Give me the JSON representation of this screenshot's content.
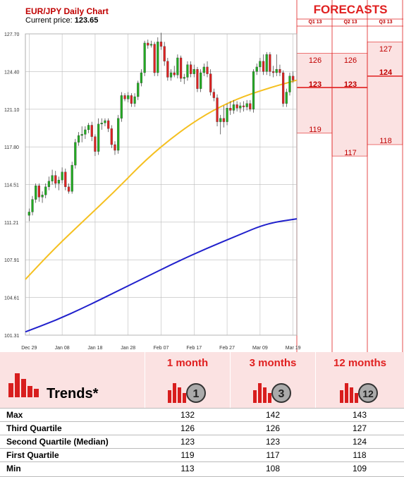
{
  "header": {
    "title": "EUR/JPY Daily Chart",
    "price_label": "Current price:",
    "price_value": "123.65"
  },
  "chart_data": {
    "type": "candlestick",
    "title": "EUR/JPY Daily Chart",
    "ylim": [
      101.31,
      127.7
    ],
    "y_ticks": [
      "127.70",
      "124.40",
      "121.10",
      "117.80",
      "114.51",
      "111.21",
      "107.91",
      "104.61",
      "101.31"
    ],
    "x_ticks": [
      "Dec 29",
      "Jan 08",
      "Jan 18",
      "Jan 28",
      "Feb 07",
      "Feb 17",
      "Feb 27",
      "Mar 09",
      "Mar 19"
    ],
    "grid": true,
    "candles": [
      {
        "d": "Dec 29",
        "o": 111.8,
        "h": 112.4,
        "l": 111.3,
        "c": 112.1
      },
      {
        "d": "Dec 30",
        "o": 112.1,
        "h": 113.5,
        "l": 111.8,
        "c": 113.2
      },
      {
        "d": "Dec 31",
        "o": 113.2,
        "h": 114.6,
        "l": 112.9,
        "c": 114.4
      },
      {
        "d": "Jan 01",
        "o": 114.4,
        "h": 114.6,
        "l": 113.0,
        "c": 113.4
      },
      {
        "d": "Jan 02",
        "o": 113.4,
        "h": 113.9,
        "l": 112.9,
        "c": 113.6
      },
      {
        "d": "Jan 03",
        "o": 113.6,
        "h": 114.6,
        "l": 113.3,
        "c": 114.3
      },
      {
        "d": "Jan 04",
        "o": 114.3,
        "h": 115.2,
        "l": 114.0,
        "c": 114.8
      },
      {
        "d": "Jan 05",
        "o": 114.8,
        "h": 115.8,
        "l": 114.5,
        "c": 115.3
      },
      {
        "d": "Jan 06",
        "o": 115.3,
        "h": 115.7,
        "l": 114.2,
        "c": 114.6
      },
      {
        "d": "Jan 07",
        "o": 114.6,
        "h": 115.2,
        "l": 114.0,
        "c": 114.9
      },
      {
        "d": "Jan 08",
        "o": 114.9,
        "h": 116.0,
        "l": 114.6,
        "c": 115.6
      },
      {
        "d": "Jan 09",
        "o": 115.6,
        "h": 115.9,
        "l": 114.0,
        "c": 114.3
      },
      {
        "d": "Jan 10",
        "o": 114.3,
        "h": 114.6,
        "l": 113.7,
        "c": 113.9
      },
      {
        "d": "Jan 11",
        "o": 113.9,
        "h": 116.5,
        "l": 113.7,
        "c": 116.2
      },
      {
        "d": "Jan 12",
        "o": 116.2,
        "h": 118.5,
        "l": 115.9,
        "c": 118.2
      },
      {
        "d": "Jan 13",
        "o": 118.2,
        "h": 119.1,
        "l": 117.9,
        "c": 118.8
      },
      {
        "d": "Jan 14",
        "o": 118.8,
        "h": 119.6,
        "l": 118.2,
        "c": 118.9
      },
      {
        "d": "Jan 15",
        "o": 118.9,
        "h": 119.6,
        "l": 118.5,
        "c": 119.3
      },
      {
        "d": "Jan 16",
        "o": 119.3,
        "h": 119.9,
        "l": 119.0,
        "c": 119.7
      },
      {
        "d": "Jan 17",
        "o": 119.7,
        "h": 120.0,
        "l": 118.3,
        "c": 118.7
      },
      {
        "d": "Jan 18",
        "o": 118.7,
        "h": 118.9,
        "l": 117.0,
        "c": 117.4
      },
      {
        "d": "Jan 19",
        "o": 117.4,
        "h": 120.3,
        "l": 117.1,
        "c": 119.8
      },
      {
        "d": "Jan 20",
        "o": 119.8,
        "h": 120.3,
        "l": 119.3,
        "c": 119.9
      },
      {
        "d": "Jan 21",
        "o": 119.9,
        "h": 120.3,
        "l": 119.6,
        "c": 120.1
      },
      {
        "d": "Jan 22",
        "o": 120.1,
        "h": 120.3,
        "l": 119.1,
        "c": 119.4
      },
      {
        "d": "Jan 23",
        "o": 119.4,
        "h": 119.7,
        "l": 117.7,
        "c": 118.0
      },
      {
        "d": "Jan 24",
        "o": 118.0,
        "h": 118.3,
        "l": 117.1,
        "c": 117.5
      },
      {
        "d": "Jan 25",
        "o": 117.5,
        "h": 120.6,
        "l": 117.2,
        "c": 120.3
      },
      {
        "d": "Jan 26",
        "o": 120.3,
        "h": 122.6,
        "l": 120.0,
        "c": 122.3
      },
      {
        "d": "Jan 27",
        "o": 122.3,
        "h": 122.5,
        "l": 121.8,
        "c": 122.0
      },
      {
        "d": "Jan 28",
        "o": 122.0,
        "h": 122.6,
        "l": 121.7,
        "c": 122.3
      },
      {
        "d": "Jan 29",
        "o": 122.3,
        "h": 122.5,
        "l": 121.3,
        "c": 121.6
      },
      {
        "d": "Jan 30",
        "o": 121.6,
        "h": 122.5,
        "l": 121.3,
        "c": 122.2
      },
      {
        "d": "Jan 31",
        "o": 122.2,
        "h": 123.6,
        "l": 121.9,
        "c": 123.4
      },
      {
        "d": "Feb 01",
        "o": 123.4,
        "h": 124.6,
        "l": 123.1,
        "c": 124.3
      },
      {
        "d": "Feb 02",
        "o": 124.3,
        "h": 127.1,
        "l": 124.0,
        "c": 126.9
      },
      {
        "d": "Feb 03",
        "o": 126.9,
        "h": 127.2,
        "l": 126.4,
        "c": 126.7
      },
      {
        "d": "Feb 04",
        "o": 126.7,
        "h": 127.1,
        "l": 126.5,
        "c": 126.8
      },
      {
        "d": "Feb 05",
        "o": 126.8,
        "h": 127.0,
        "l": 124.0,
        "c": 124.3
      },
      {
        "d": "Feb 06",
        "o": 124.3,
        "h": 127.4,
        "l": 124.0,
        "c": 127.0
      },
      {
        "d": "Feb 07",
        "o": 127.0,
        "h": 127.8,
        "l": 126.3,
        "c": 126.6
      },
      {
        "d": "Feb 08",
        "o": 126.6,
        "h": 127.0,
        "l": 124.9,
        "c": 125.3
      },
      {
        "d": "Feb 09",
        "o": 125.3,
        "h": 125.6,
        "l": 123.6,
        "c": 123.9
      },
      {
        "d": "Feb 10",
        "o": 123.9,
        "h": 124.6,
        "l": 123.6,
        "c": 124.3
      },
      {
        "d": "Feb 11",
        "o": 124.3,
        "h": 124.9,
        "l": 123.9,
        "c": 124.1
      },
      {
        "d": "Feb 12",
        "o": 124.1,
        "h": 125.9,
        "l": 123.8,
        "c": 125.6
      },
      {
        "d": "Feb 13",
        "o": 125.6,
        "h": 125.8,
        "l": 123.5,
        "c": 123.8
      },
      {
        "d": "Feb 14",
        "o": 123.8,
        "h": 124.2,
        "l": 123.3,
        "c": 123.9
      },
      {
        "d": "Feb 15",
        "o": 123.9,
        "h": 125.3,
        "l": 123.6,
        "c": 125.0
      },
      {
        "d": "Feb 16",
        "o": 125.0,
        "h": 125.3,
        "l": 123.9,
        "c": 124.2
      },
      {
        "d": "Feb 17",
        "o": 124.2,
        "h": 125.0,
        "l": 123.9,
        "c": 124.6
      },
      {
        "d": "Feb 18",
        "o": 124.6,
        "h": 124.8,
        "l": 122.6,
        "c": 122.9
      },
      {
        "d": "Feb 19",
        "o": 122.9,
        "h": 124.6,
        "l": 122.6,
        "c": 124.3
      },
      {
        "d": "Feb 20",
        "o": 124.3,
        "h": 125.1,
        "l": 124.0,
        "c": 124.8
      },
      {
        "d": "Feb 21",
        "o": 124.8,
        "h": 125.3,
        "l": 123.9,
        "c": 124.2
      },
      {
        "d": "Feb 22",
        "o": 124.2,
        "h": 124.6,
        "l": 122.3,
        "c": 122.6
      },
      {
        "d": "Feb 23",
        "o": 122.6,
        "h": 122.9,
        "l": 121.8,
        "c": 122.1
      },
      {
        "d": "Feb 24",
        "o": 122.1,
        "h": 122.4,
        "l": 119.6,
        "c": 120.0
      },
      {
        "d": "Feb 25",
        "o": 120.0,
        "h": 120.6,
        "l": 118.9,
        "c": 120.3
      },
      {
        "d": "Feb 26",
        "o": 120.3,
        "h": 121.4,
        "l": 119.5,
        "c": 120.0
      },
      {
        "d": "Feb 27",
        "o": 120.0,
        "h": 121.6,
        "l": 119.7,
        "c": 121.2
      },
      {
        "d": "Feb 28",
        "o": 121.2,
        "h": 121.8,
        "l": 120.6,
        "c": 121.0
      },
      {
        "d": "Mar 01",
        "o": 121.0,
        "h": 121.9,
        "l": 120.7,
        "c": 121.5
      },
      {
        "d": "Mar 02",
        "o": 121.5,
        "h": 121.8,
        "l": 120.9,
        "c": 121.2
      },
      {
        "d": "Mar 03",
        "o": 121.2,
        "h": 121.7,
        "l": 120.8,
        "c": 121.4
      },
      {
        "d": "Mar 04",
        "o": 121.4,
        "h": 121.8,
        "l": 120.9,
        "c": 121.3
      },
      {
        "d": "Mar 05",
        "o": 121.3,
        "h": 121.9,
        "l": 121.0,
        "c": 121.6
      },
      {
        "d": "Mar 06",
        "o": 121.6,
        "h": 121.9,
        "l": 120.9,
        "c": 121.1
      },
      {
        "d": "Mar 07",
        "o": 121.1,
        "h": 124.6,
        "l": 120.8,
        "c": 124.4
      },
      {
        "d": "Mar 08",
        "o": 124.4,
        "h": 125.1,
        "l": 124.1,
        "c": 124.8
      },
      {
        "d": "Mar 09",
        "o": 124.8,
        "h": 125.6,
        "l": 124.4,
        "c": 125.3
      },
      {
        "d": "Mar 10",
        "o": 125.3,
        "h": 125.9,
        "l": 124.1,
        "c": 124.4
      },
      {
        "d": "Mar 11",
        "o": 124.4,
        "h": 126.1,
        "l": 124.1,
        "c": 125.9
      },
      {
        "d": "Mar 12",
        "o": 125.9,
        "h": 126.1,
        "l": 124.0,
        "c": 124.4
      },
      {
        "d": "Mar 13",
        "o": 124.4,
        "h": 124.9,
        "l": 123.9,
        "c": 124.3
      },
      {
        "d": "Mar 14",
        "o": 124.3,
        "h": 125.9,
        "l": 124.0,
        "c": 124.6
      },
      {
        "d": "Mar 15",
        "o": 124.6,
        "h": 125.0,
        "l": 124.0,
        "c": 124.3
      },
      {
        "d": "Mar 16",
        "o": 124.3,
        "h": 124.5,
        "l": 121.3,
        "c": 121.6
      },
      {
        "d": "Mar 17",
        "o": 121.6,
        "h": 122.9,
        "l": 121.3,
        "c": 122.6
      },
      {
        "d": "Mar 18",
        "o": 122.6,
        "h": 124.3,
        "l": 122.3,
        "c": 124.0
      },
      {
        "d": "Mar 19",
        "o": 124.0,
        "h": 124.4,
        "l": 123.4,
        "c": 123.65
      }
    ],
    "ma_short": [
      106.2,
      109.0,
      111.5,
      114.0,
      116.7,
      118.9,
      120.7,
      122.0,
      122.9,
      123.65
    ],
    "ma_long": [
      101.6,
      102.6,
      103.8,
      105.1,
      106.4,
      107.7,
      108.9,
      110.0,
      111.1,
      111.5
    ],
    "colors": {
      "up": "#22aa22",
      "down": "#dd2222",
      "ma_short": "#f5c020",
      "ma_long": "#2020cc",
      "grid": "#bbbbbb",
      "forecast_fill": "#fbe2e2",
      "forecast_line": "#e02020"
    }
  },
  "forecasts": {
    "title": "FORECASTS",
    "columns": [
      {
        "label": "Q1 13",
        "high": "126",
        "median": "123",
        "low": "119",
        "high_v": 126,
        "median_v": 123,
        "low_v": 119
      },
      {
        "label": "Q2 13",
        "high": "126",
        "median": "123",
        "low": "117",
        "high_v": 126,
        "median_v": 123,
        "low_v": 117
      },
      {
        "label": "Q3 13",
        "high": "127",
        "median": "124",
        "low": "118",
        "high_v": 127,
        "median_v": 124,
        "low_v": 118
      }
    ]
  },
  "trends": {
    "label": "Trends*",
    "horizons": [
      {
        "label": "1 month",
        "badge": "1"
      },
      {
        "label": "3 months",
        "badge": "3"
      },
      {
        "label": "12 months",
        "badge": "12"
      }
    ],
    "rows": [
      {
        "label": "Max",
        "values": [
          "132",
          "142",
          "143"
        ]
      },
      {
        "label": "Third Quartile",
        "values": [
          "126",
          "126",
          "127"
        ]
      },
      {
        "label": "Second Quartile (Median)",
        "values": [
          "123",
          "123",
          "124"
        ]
      },
      {
        "label": "First Quartile",
        "values": [
          "119",
          "117",
          "118"
        ]
      },
      {
        "label": "Min",
        "values": [
          "113",
          "108",
          "109"
        ]
      }
    ]
  }
}
